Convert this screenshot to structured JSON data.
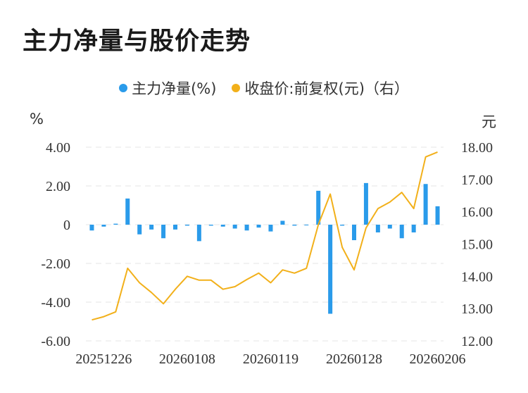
{
  "title": "主力净量与股价走势",
  "chart_data": {
    "type": "bar",
    "legend": [
      {
        "label": "主力净量(%)",
        "color": "#2a9bea"
      },
      {
        "label": "收盘价:前复权(元)（右）",
        "color": "#f2b01a"
      }
    ],
    "y_unit_left": "%",
    "y_unit_right": "元",
    "x_tick_labels": [
      "20251226",
      "20260108",
      "20260119",
      "20260128",
      "20260206"
    ],
    "y_left_ticks": [
      "4.00",
      "2.00",
      "0",
      "-2.00",
      "-4.00",
      "-6.00"
    ],
    "y_right_ticks": [
      "18.00",
      "17.00",
      "16.00",
      "15.00",
      "14.00",
      "13.00",
      "12.00"
    ],
    "ylim_left": [
      -6,
      4
    ],
    "ylim_right": [
      12,
      18
    ],
    "series": [
      {
        "name": "主力净量(%)",
        "type": "bar",
        "color": "#2a9bea",
        "values": [
          -0.3,
          -0.1,
          0.05,
          1.35,
          -0.5,
          -0.25,
          -0.7,
          -0.25,
          -0.05,
          -0.85,
          -0.05,
          -0.1,
          -0.2,
          -0.3,
          -0.15,
          -0.35,
          0.2,
          -0.05,
          -0.02,
          1.75,
          -4.6,
          -0.05,
          -0.8,
          2.15,
          -0.4,
          -0.2,
          -0.7,
          -0.4,
          2.1,
          0.95
        ]
      },
      {
        "name": "收盘价:前复权(元)（右）",
        "type": "line",
        "color": "#f2b01a",
        "values": [
          12.65,
          12.75,
          12.9,
          14.25,
          13.8,
          13.5,
          13.15,
          13.6,
          14.0,
          13.88,
          13.88,
          13.6,
          13.68,
          13.9,
          14.1,
          13.8,
          14.2,
          14.1,
          14.25,
          15.6,
          16.55,
          14.9,
          14.2,
          15.5,
          16.1,
          16.3,
          16.6,
          16.1,
          17.7,
          17.85
        ]
      }
    ]
  }
}
